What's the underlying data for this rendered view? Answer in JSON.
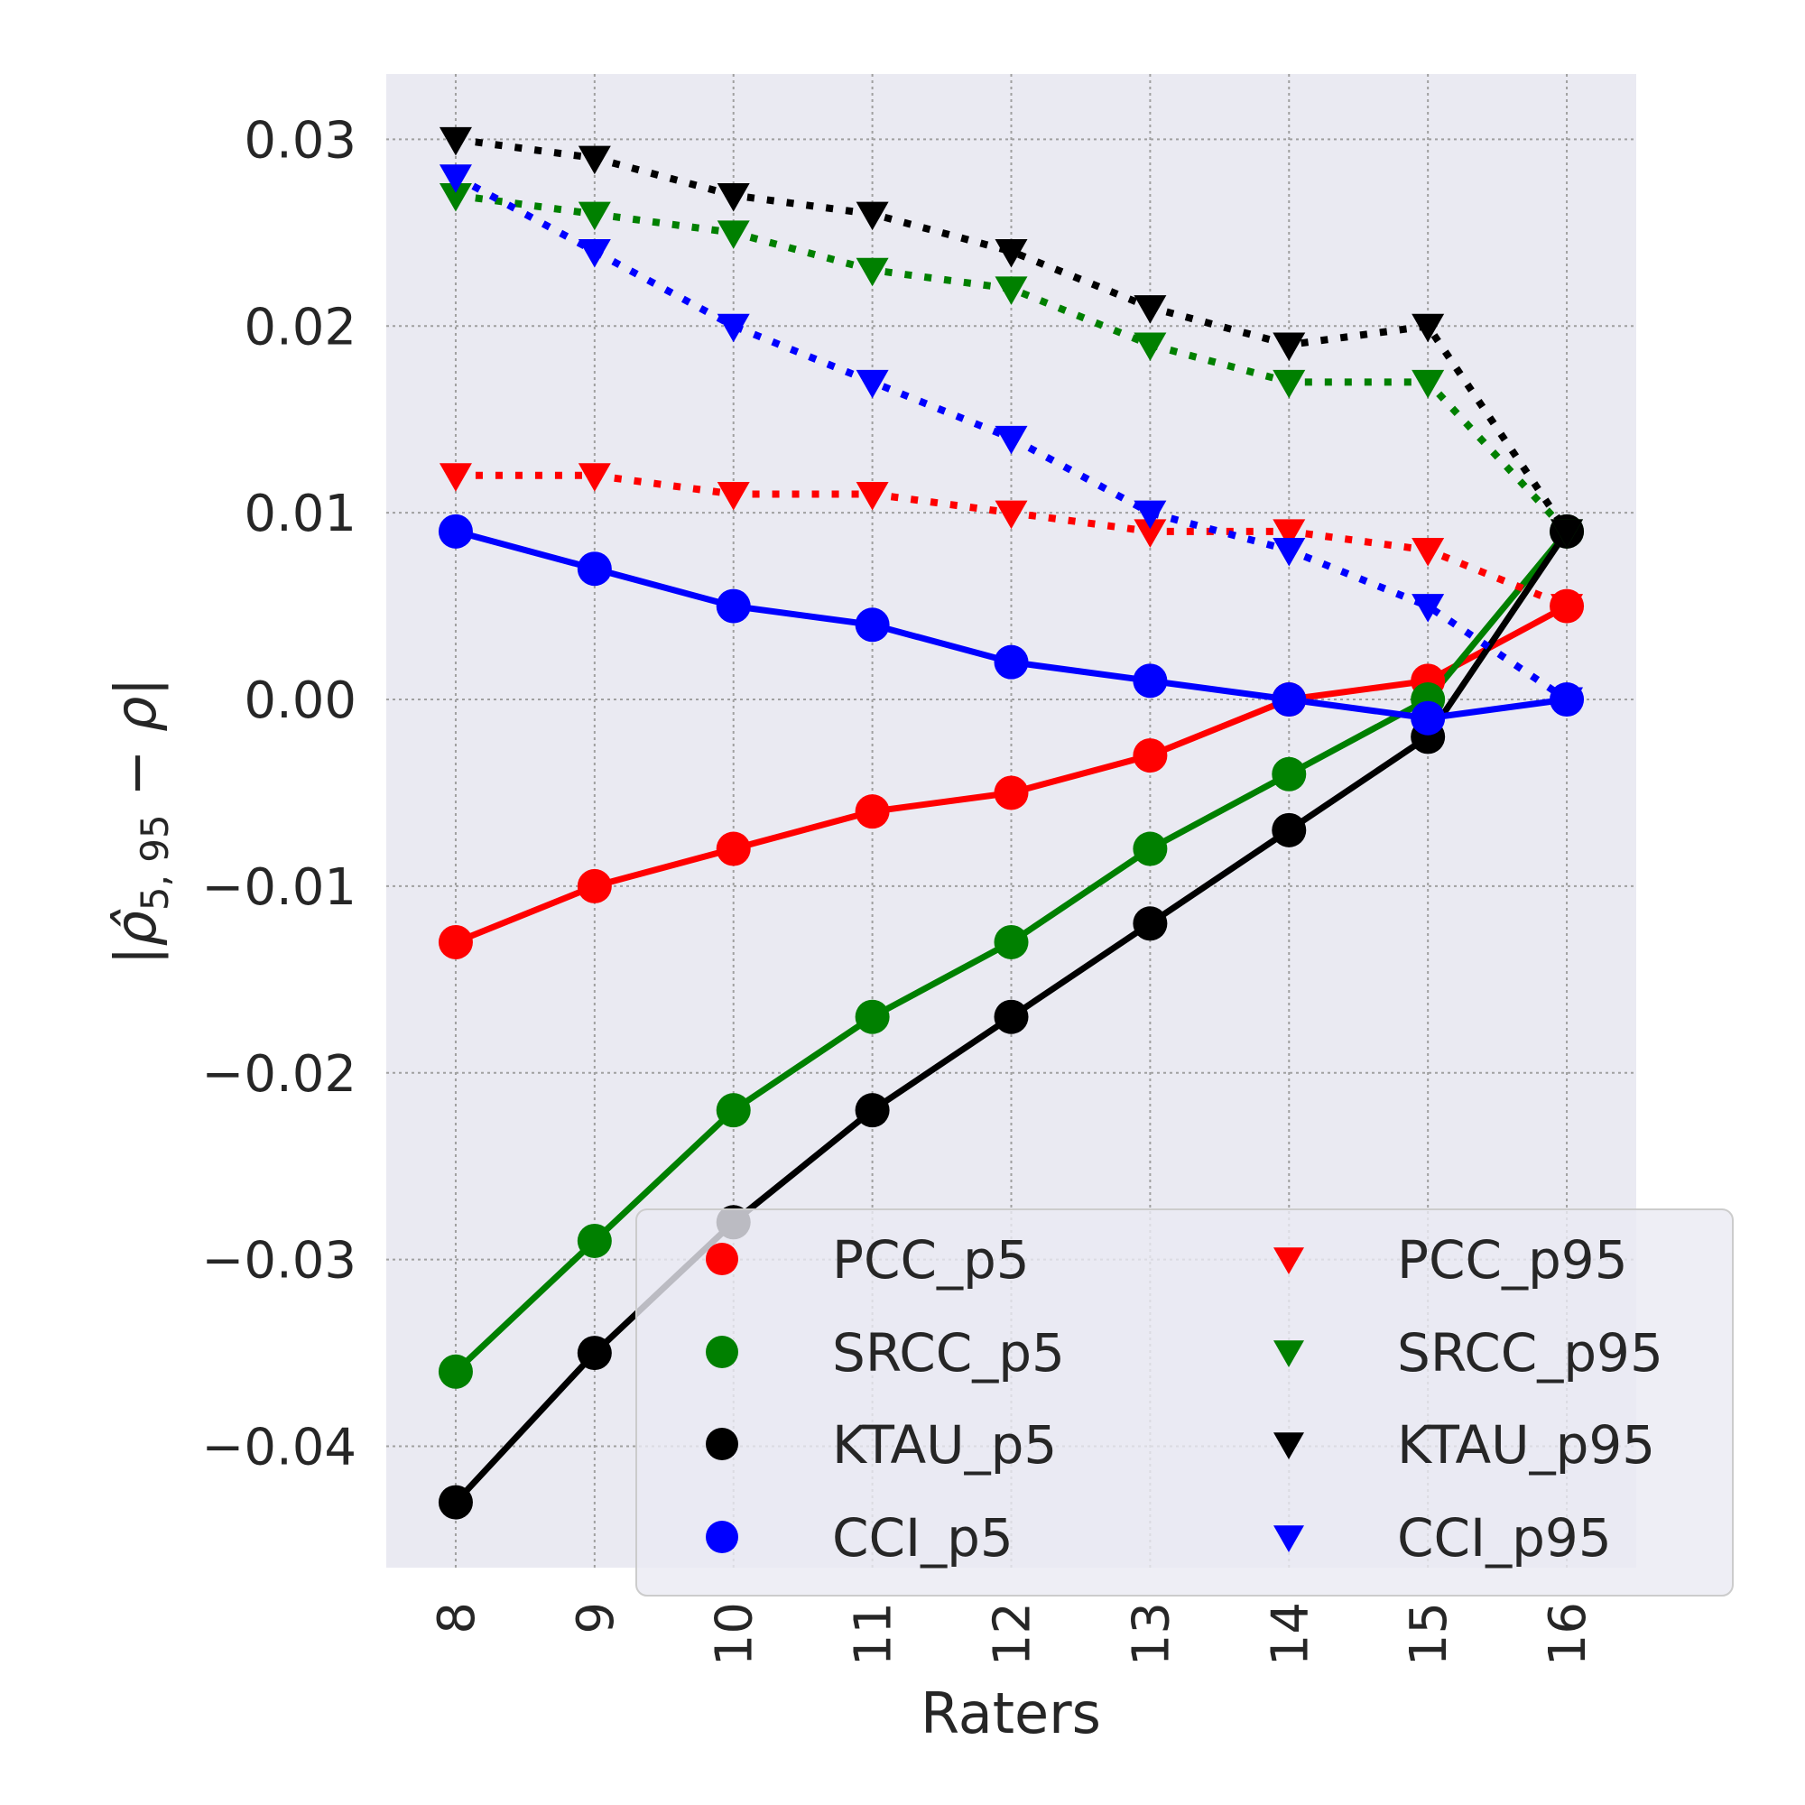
{
  "chart_data": {
    "type": "line",
    "xlabel": "Raters",
    "ylabel": "|ρ̂5, 95 − ρ|",
    "ylabel_parts": {
      "open": "|",
      "rho_hat": "ρ̂",
      "subscript": "5, 95",
      "minus": " − ",
      "rho": "ρ",
      "close": "|"
    },
    "x": [
      8,
      9,
      10,
      11,
      12,
      13,
      14,
      15,
      16
    ],
    "x_tick_labels": [
      "8",
      "9",
      "10",
      "11",
      "12",
      "13",
      "14",
      "15",
      "16"
    ],
    "y_ticks": [
      0.03,
      0.02,
      0.01,
      0.0,
      -0.01,
      -0.02,
      -0.03,
      -0.04
    ],
    "y_tick_labels": [
      "0.03",
      "0.02",
      "0.01",
      "0.00",
      "−0.01",
      "−0.02",
      "−0.03",
      "−0.04"
    ],
    "xlim": [
      7.5,
      16.5
    ],
    "ylim": [
      -0.0465,
      0.0335
    ],
    "grid": true,
    "legend_position": "lower-right",
    "legend_columns": 2,
    "series": [
      {
        "name": "PCC_p5",
        "color": "#ff0000",
        "marker": "circle",
        "linestyle": "solid",
        "values": [
          -0.013,
          -0.01,
          -0.008,
          -0.006,
          -0.005,
          -0.003,
          0.0,
          0.001,
          0.005
        ]
      },
      {
        "name": "SRCC_p5",
        "color": "#008000",
        "marker": "circle",
        "linestyle": "solid",
        "values": [
          -0.036,
          -0.029,
          -0.022,
          -0.017,
          -0.013,
          -0.008,
          -0.004,
          0.0,
          0.009
        ]
      },
      {
        "name": "KTAU_p5",
        "color": "#000000",
        "marker": "circle",
        "linestyle": "solid",
        "values": [
          -0.043,
          -0.035,
          -0.028,
          -0.022,
          -0.017,
          -0.012,
          -0.007,
          -0.002,
          0.009
        ]
      },
      {
        "name": "CCI_p5",
        "color": "#0000ff",
        "marker": "circle",
        "linestyle": "solid",
        "values": [
          0.009,
          0.007,
          0.005,
          0.004,
          0.002,
          0.001,
          0.0,
          -0.001,
          0.0
        ]
      },
      {
        "name": "PCC_p95",
        "color": "#ff0000",
        "marker": "triangle-down",
        "linestyle": "dotted",
        "values": [
          0.012,
          0.012,
          0.011,
          0.011,
          0.01,
          0.009,
          0.009,
          0.008,
          0.005
        ]
      },
      {
        "name": "SRCC_p95",
        "color": "#008000",
        "marker": "triangle-down",
        "linestyle": "dotted",
        "values": [
          0.027,
          0.026,
          0.025,
          0.023,
          0.022,
          0.019,
          0.017,
          0.017,
          0.009
        ]
      },
      {
        "name": "KTAU_p95",
        "color": "#000000",
        "marker": "triangle-down",
        "linestyle": "dotted",
        "values": [
          0.03,
          0.029,
          0.027,
          0.026,
          0.024,
          0.021,
          0.019,
          0.02,
          0.009
        ]
      },
      {
        "name": "CCI_p95",
        "color": "#0000ff",
        "marker": "triangle-down",
        "linestyle": "dotted",
        "values": [
          0.028,
          0.024,
          0.02,
          0.017,
          0.014,
          0.01,
          0.008,
          0.005,
          0.0
        ]
      }
    ]
  }
}
